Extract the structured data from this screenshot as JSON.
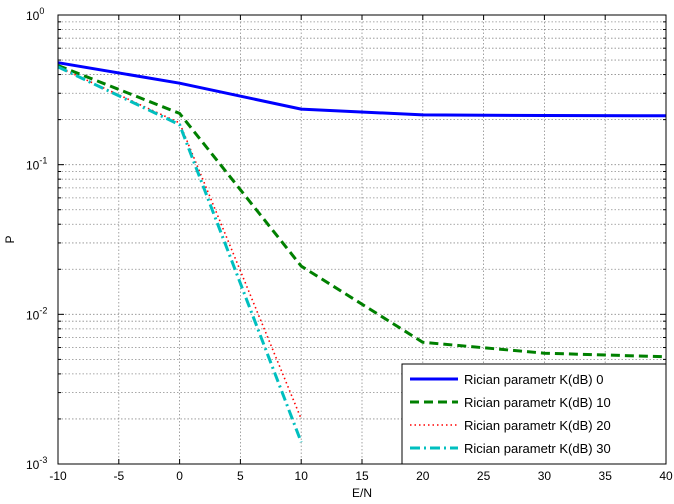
{
  "chart_data": {
    "type": "line",
    "title": "",
    "xlabel": "E/N",
    "ylabel": "P",
    "xlim": [
      -10,
      40
    ],
    "ylim": [
      0.001,
      1
    ],
    "yscale": "log",
    "grid": true,
    "legend_position": "bottom-right",
    "x_ticks": [
      -10,
      -5,
      0,
      5,
      10,
      15,
      20,
      25,
      30,
      35,
      40
    ],
    "y_ticks": [
      {
        "value": 1,
        "base": "10",
        "exp": "0"
      },
      {
        "value": 0.1,
        "base": "10",
        "exp": "-1"
      },
      {
        "value": 0.01,
        "base": "10",
        "exp": "-2"
      },
      {
        "value": 0.001,
        "base": "10",
        "exp": "-3"
      }
    ],
    "series": [
      {
        "name": "Rician parametr K(dB) 0",
        "color": "#0000ff",
        "style": "solid",
        "x": [
          -10,
          0,
          10,
          20,
          30,
          40
        ],
        "y": [
          0.48,
          0.35,
          0.235,
          0.215,
          0.213,
          0.212
        ]
      },
      {
        "name": "Rician parametr K(dB) 10",
        "color": "#008000",
        "style": "dashed",
        "x": [
          -10,
          0,
          10,
          20,
          30,
          40
        ],
        "y": [
          0.46,
          0.22,
          0.021,
          0.0065,
          0.0055,
          0.0052
        ]
      },
      {
        "name": "Rician parametr K(dB) 20",
        "color": "#ff0000",
        "style": "dotted",
        "x": [
          -10,
          0,
          10
        ],
        "y": [
          0.45,
          0.19,
          0.002
        ]
      },
      {
        "name": "Rician parametr K(dB) 30",
        "color": "#00bfbf",
        "style": "dashdot",
        "x": [
          -10,
          0,
          10
        ],
        "y": [
          0.45,
          0.185,
          0.0014
        ]
      }
    ]
  }
}
